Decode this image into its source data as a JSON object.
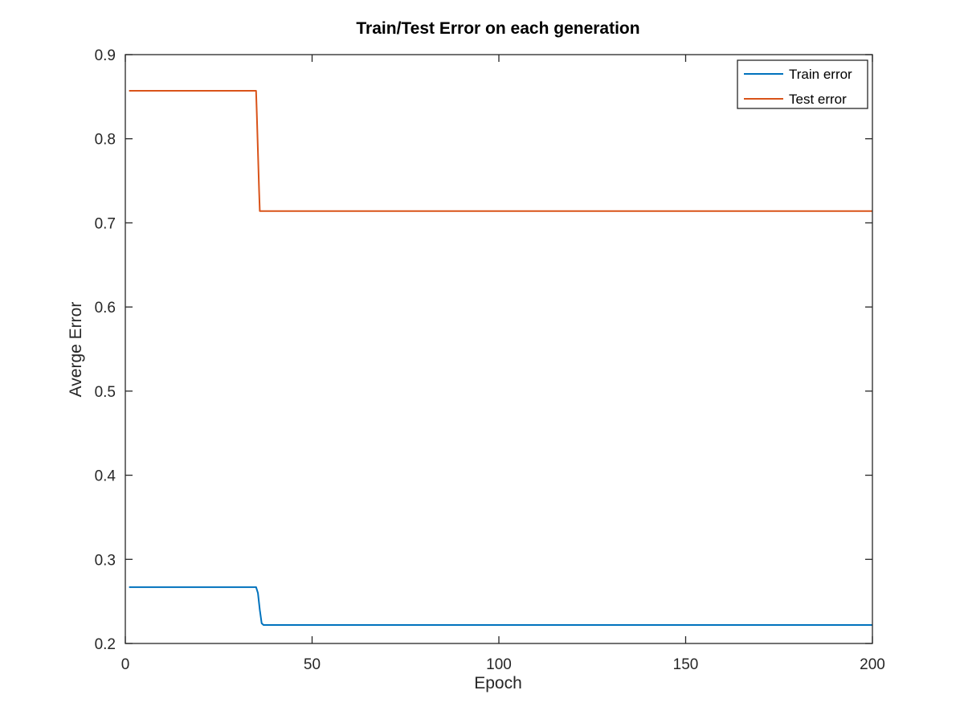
{
  "chart_data": {
    "type": "line",
    "title": "Train/Test Error on each generation",
    "xlabel": "Epoch",
    "ylabel": "Averge Error",
    "xlim": [
      0,
      200
    ],
    "ylim": [
      0.2,
      0.9
    ],
    "xticks": [
      0,
      50,
      100,
      150,
      200
    ],
    "yticks": [
      0.2,
      0.3,
      0.4,
      0.5,
      0.6,
      0.7,
      0.8,
      0.9
    ],
    "grid": false,
    "legend_position": "top-right",
    "series": [
      {
        "name": "Train error",
        "color": "#0072bd",
        "x": [
          1,
          35,
          35.5,
          36,
          36.5,
          37,
          200
        ],
        "y": [
          0.267,
          0.267,
          0.26,
          0.24,
          0.224,
          0.222,
          0.222
        ]
      },
      {
        "name": "Test error",
        "color": "#d95319",
        "x": [
          1,
          35,
          35.2,
          35.4,
          35.6,
          35.8,
          36,
          200
        ],
        "y": [
          0.857,
          0.857,
          0.83,
          0.8,
          0.77,
          0.74,
          0.714,
          0.714
        ]
      }
    ]
  }
}
